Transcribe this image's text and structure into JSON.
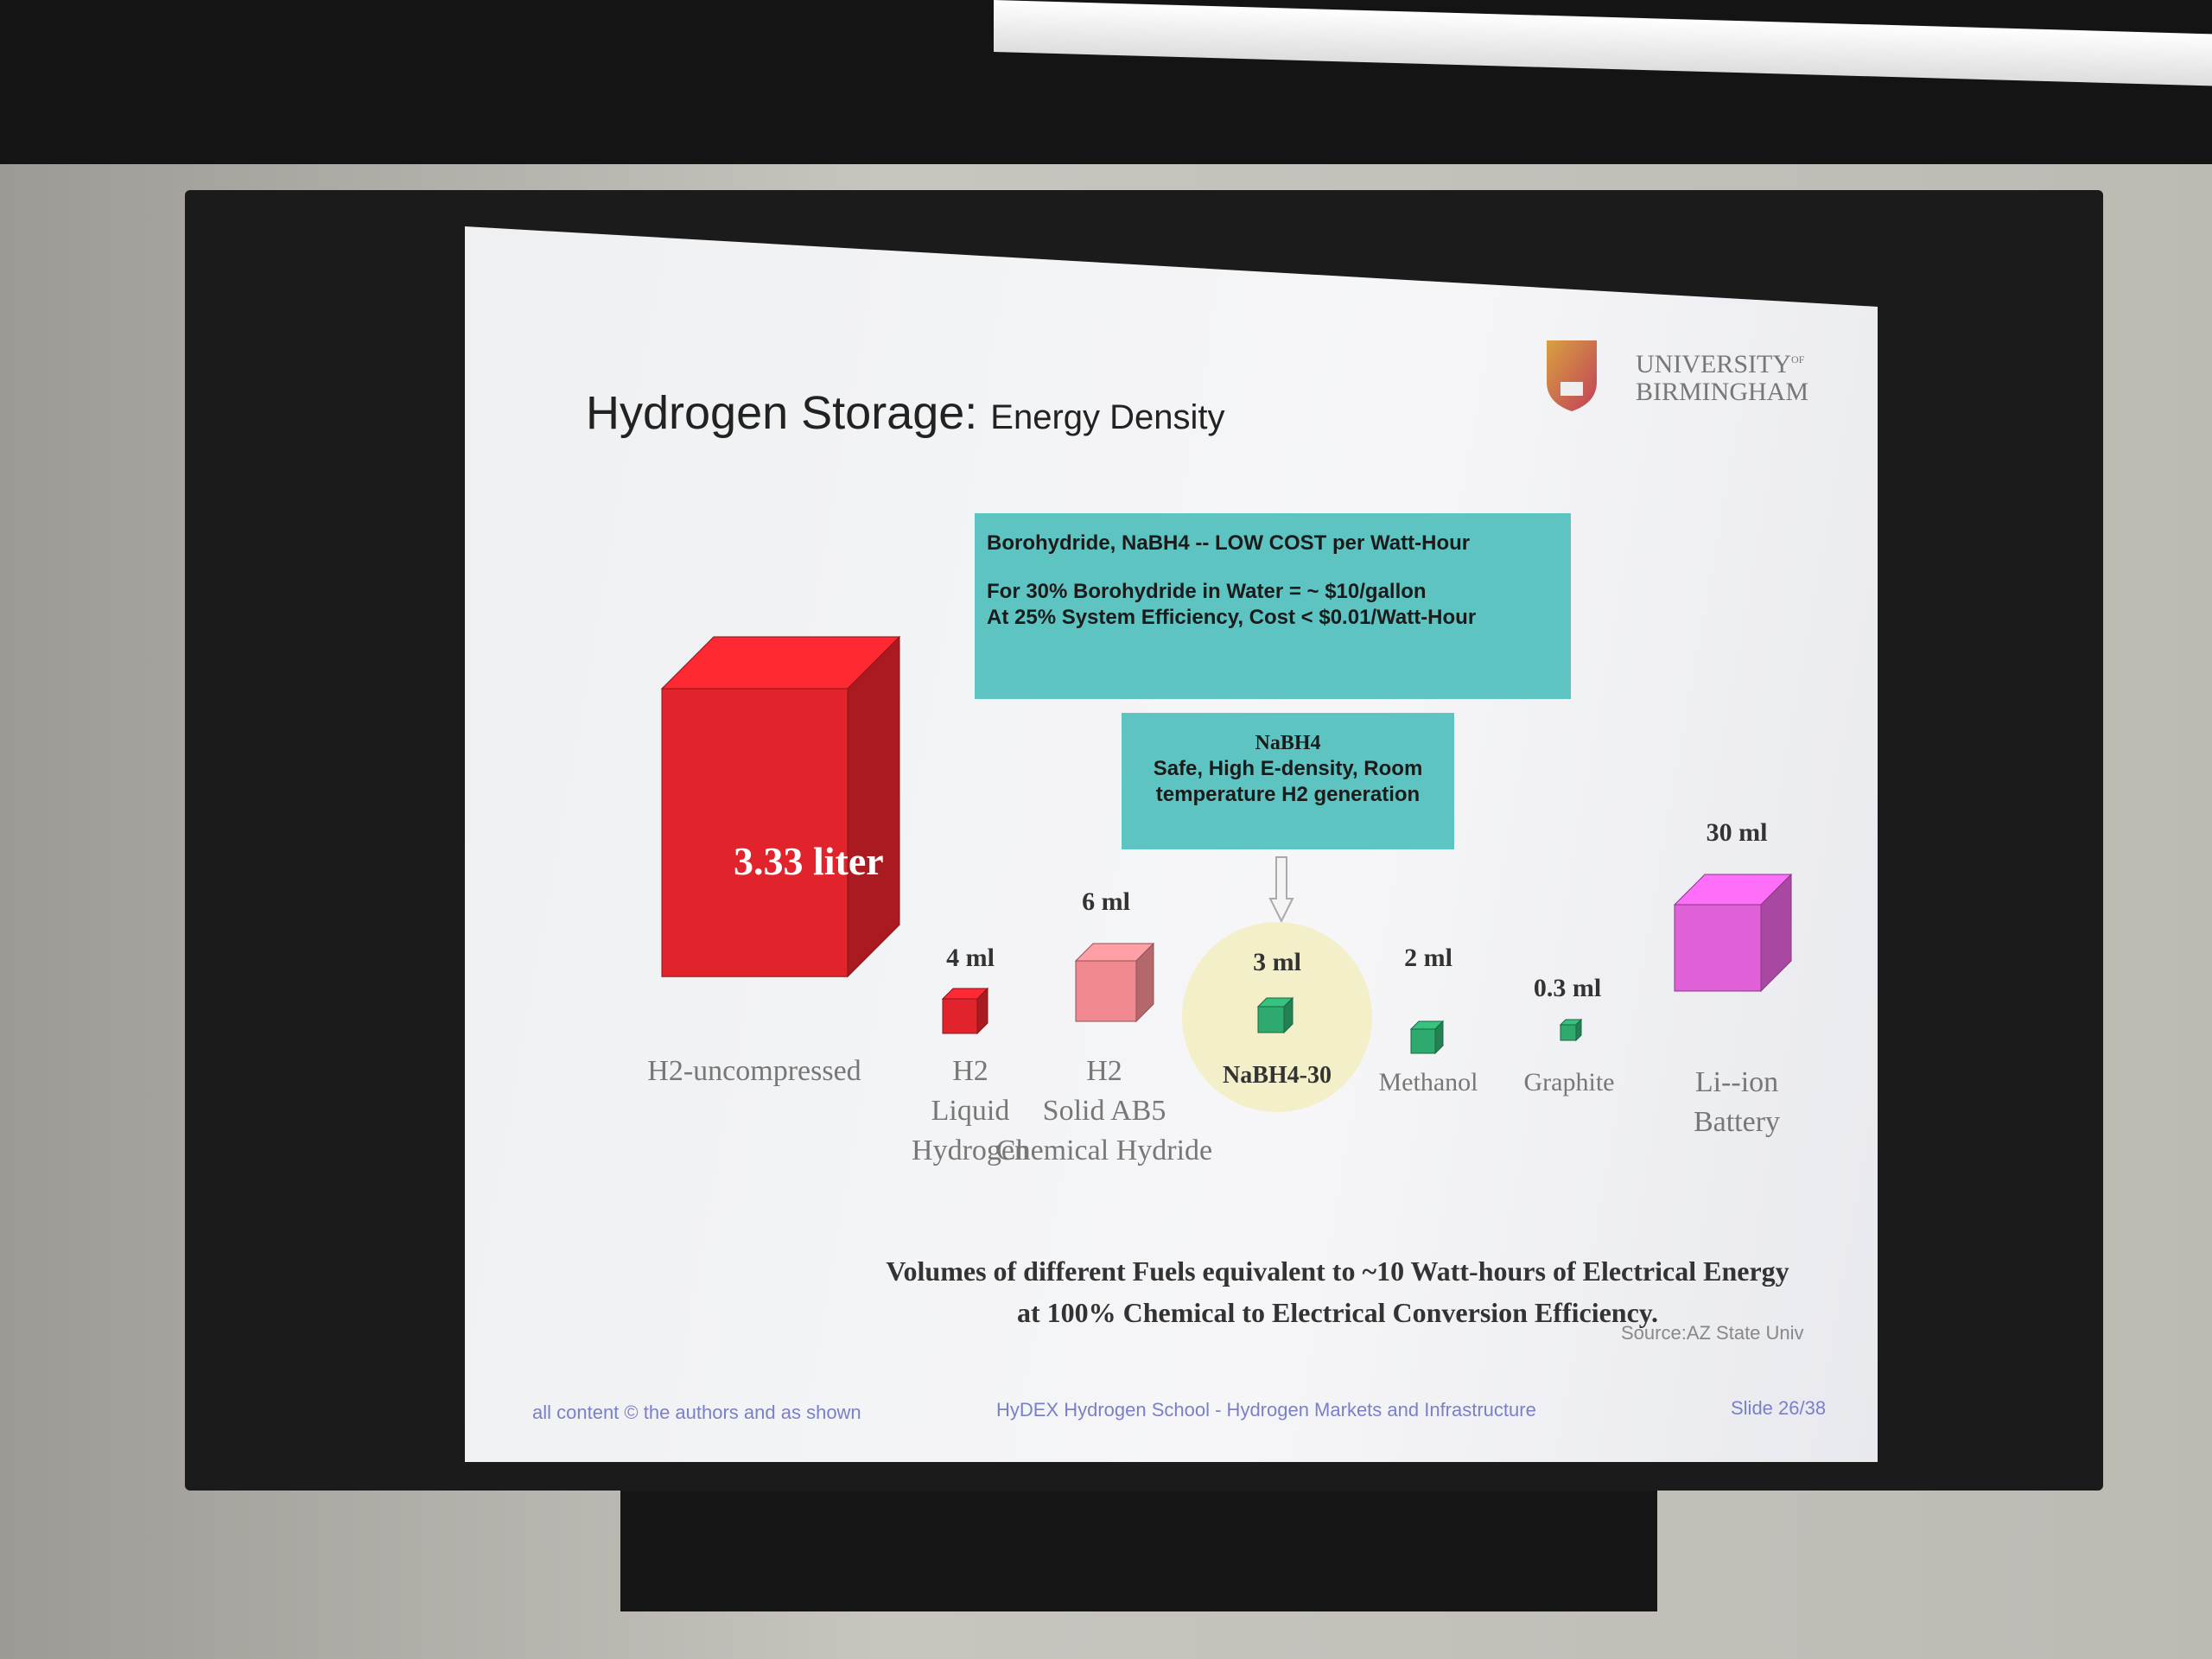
{
  "slide": {
    "title_main": "Hydrogen Storage:",
    "title_sub": "Energy Density",
    "logo": {
      "line1": "UNIVERSITY",
      "of": "OF",
      "line2": "BIRMINGHAM"
    },
    "info_box": {
      "line1": "Borohydride, NaBH4 -- LOW COST per Watt-Hour",
      "line2": "For 30% Borohydride in Water = ~ $10/gallon",
      "line3": "At 25% System Efficiency, Cost < $0.01/Watt-Hour"
    },
    "nabh4_box": {
      "title": "NaBH4",
      "line1": "Safe, High E-density, Room",
      "line2": "temperature H2 generation"
    },
    "fuels": [
      {
        "volume": "3.33 liter",
        "label": [
          "H2-uncompressed"
        ],
        "color": "#e1242c"
      },
      {
        "volume": "4 ml",
        "label": [
          "H2",
          "Liquid",
          "Hydrogen"
        ],
        "color": "#e1242c"
      },
      {
        "volume": "6 ml",
        "label": [
          "H2",
          "Solid AB5",
          "Chemical Hydride"
        ],
        "color": "#f08a90"
      },
      {
        "volume": "3 ml",
        "label": [
          "NaBH4-30"
        ],
        "color": "#2eaa6e"
      },
      {
        "volume": "2 ml",
        "label": [
          "Methanol"
        ],
        "color": "#2eaa6e"
      },
      {
        "volume": "0.3 ml",
        "label": [
          "Graphite"
        ],
        "color": "#2eaa6e"
      },
      {
        "volume": "30 ml",
        "label": [
          "Li--ion",
          "Battery"
        ],
        "color": "#e060d8"
      }
    ],
    "caption_line1": "Volumes of different Fuels equivalent to ~10 Watt-hours of Electrical Energy",
    "caption_line2": "at 100% Chemical to Electrical Conversion Efficiency.",
    "source": "Source:AZ State Univ",
    "footer": {
      "left": "all content © the authors and as shown",
      "center": "HyDEX Hydrogen School - Hydrogen Markets and Infrastructure",
      "right": "Slide 26/38"
    },
    "highlight_color": "#f3efc8",
    "teal_color": "#5ec4c2"
  }
}
